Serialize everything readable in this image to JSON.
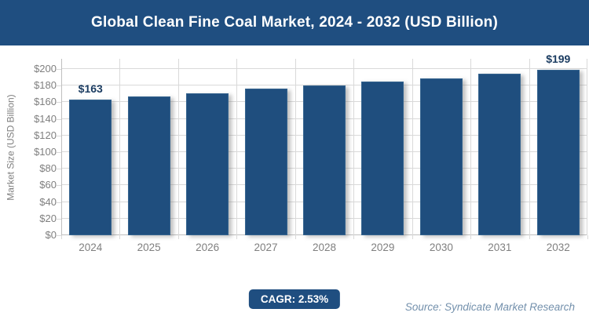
{
  "header": {
    "title": "Global Clean Fine Coal Market, 2024 - 2032 (USD Billion)"
  },
  "chart_data": {
    "type": "bar",
    "title": "Global Clean Fine Coal Market, 2024 - 2032 (USD Billion)",
    "categories": [
      "2024",
      "2025",
      "2026",
      "2027",
      "2028",
      "2029",
      "2030",
      "2031",
      "2032"
    ],
    "values": [
      163,
      167,
      171,
      176,
      180,
      185,
      189,
      194,
      199
    ],
    "data_labels": [
      {
        "index": 0,
        "text": "$163"
      },
      {
        "index": 8,
        "text": "$199"
      }
    ],
    "xlabel": "",
    "ylabel": "Market Size (USD Billion)",
    "ylim": [
      0,
      200
    ],
    "ytick_step": 20,
    "ytick_labels": [
      "$0",
      "$20",
      "$40",
      "$60",
      "$80",
      "$100",
      "$120",
      "$140",
      "$160",
      "$180",
      "$200"
    ],
    "grid": true,
    "legend": "none"
  },
  "footer": {
    "cagr_label": "CAGR: 2.53%",
    "source": "Source: Syndicate Market Research"
  },
  "colors": {
    "header_bg": "#1F4E80",
    "bar_fill": "#1F4E7E",
    "bar_edge": "#35648F",
    "gridline": "#D9D9D9",
    "axis_line": "#BFBFBF",
    "tick_text": "#7F7F7F",
    "data_label_text": "#1B3C61",
    "badge_bg": "#1F4E80",
    "badge_text": "#FFFFFF",
    "source_text": "#7390AC"
  }
}
